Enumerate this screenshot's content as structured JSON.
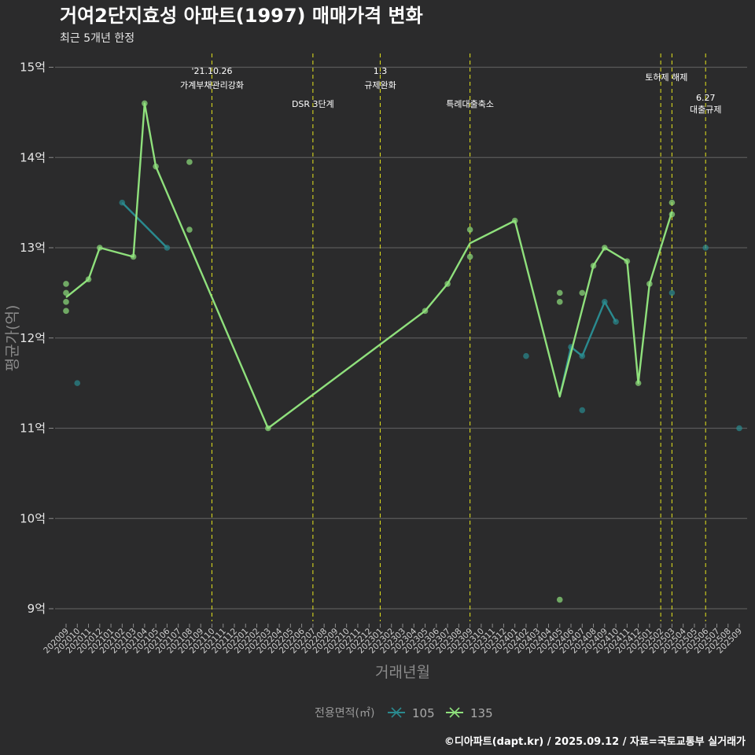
{
  "chart_data": {
    "type": "line",
    "title": "거여2단지효성 아파트(1997) 매매가격 변화",
    "subtitle": "최근 5개년 한정",
    "xlabel": "거래년월",
    "ylabel": "평균가(억)",
    "ylim": [
      8.9,
      15.1
    ],
    "yticks": [
      9,
      10,
      11,
      12,
      13,
      14,
      15
    ],
    "ytick_labels": [
      "9억",
      "10억",
      "11억",
      "12억",
      "13억",
      "14억",
      "15억"
    ],
    "categories": [
      "202009",
      "202010",
      "202011",
      "202012",
      "202101",
      "202102",
      "202103",
      "202104",
      "202105",
      "202106",
      "202107",
      "202108",
      "202109",
      "202110",
      "202111",
      "202112",
      "202201",
      "202202",
      "202203",
      "202204",
      "202205",
      "202206",
      "202207",
      "202208",
      "202209",
      "202210",
      "202211",
      "202212",
      "202301",
      "202302",
      "202303",
      "202304",
      "202305",
      "202306",
      "202307",
      "202308",
      "202309",
      "202310",
      "202311",
      "202312",
      "202401",
      "202402",
      "202403",
      "202404",
      "202405",
      "202406",
      "202407",
      "202408",
      "202409",
      "202410",
      "202411",
      "202412",
      "202501",
      "202502",
      "202503",
      "202504",
      "202505",
      "202506",
      "202507",
      "202508",
      "202509"
    ],
    "series": [
      {
        "name": "105",
        "color": "#2a8a8f",
        "line": [
          [
            "202102",
            13.5
          ],
          [
            "202106",
            13.0
          ]
        ],
        "line2": [
          [
            "202405",
            11.35
          ],
          [
            "202406",
            11.9
          ],
          [
            "202407",
            11.8
          ],
          [
            "202409",
            12.4
          ],
          [
            "202410",
            12.18
          ]
        ],
        "points": [
          [
            "202010",
            11.5
          ],
          [
            "202102",
            13.5
          ],
          [
            "202106",
            13.0
          ],
          [
            "202402",
            11.8
          ],
          [
            "202406",
            11.9
          ],
          [
            "202407",
            11.2
          ],
          [
            "202407",
            11.8
          ],
          [
            "202409",
            12.4
          ],
          [
            "202410",
            12.18
          ],
          [
            "202503",
            12.5
          ],
          [
            "202506",
            13.0
          ],
          [
            "202509",
            11.0
          ]
        ]
      },
      {
        "name": "135",
        "color": "#8fe07c",
        "line": [
          [
            "202009",
            12.45
          ],
          [
            "202011",
            12.65
          ],
          [
            "202012",
            13.0
          ],
          [
            "202103",
            12.9
          ],
          [
            "202104",
            14.6
          ],
          [
            "202105",
            13.9
          ],
          [
            "202203",
            11.0
          ],
          [
            "202305",
            12.3
          ],
          [
            "202307",
            12.6
          ],
          [
            "202309",
            13.05
          ],
          [
            "202401",
            13.3
          ],
          [
            "202405",
            11.35
          ],
          [
            "202408",
            12.8
          ],
          [
            "202409",
            13.0
          ],
          [
            "202411",
            12.85
          ],
          [
            "202412",
            11.5
          ],
          [
            "202501",
            12.6
          ],
          [
            "202503",
            13.4
          ]
        ],
        "points": [
          [
            "202009",
            12.6
          ],
          [
            "202009",
            12.5
          ],
          [
            "202009",
            12.4
          ],
          [
            "202009",
            12.3
          ],
          [
            "202011",
            12.65
          ],
          [
            "202012",
            13.0
          ],
          [
            "202103",
            12.9
          ],
          [
            "202104",
            14.6
          ],
          [
            "202105",
            13.9
          ],
          [
            "202108",
            13.95
          ],
          [
            "202108",
            13.2
          ],
          [
            "202203",
            11.0
          ],
          [
            "202305",
            12.3
          ],
          [
            "202307",
            12.6
          ],
          [
            "202309",
            13.2
          ],
          [
            "202309",
            12.9
          ],
          [
            "202401",
            13.3
          ],
          [
            "202405",
            12.5
          ],
          [
            "202405",
            12.4
          ],
          [
            "202405",
            9.1
          ],
          [
            "202407",
            12.5
          ],
          [
            "202408",
            12.8
          ],
          [
            "202409",
            13.0
          ],
          [
            "202411",
            12.85
          ],
          [
            "202412",
            11.5
          ],
          [
            "202501",
            12.6
          ],
          [
            "202503",
            13.5
          ],
          [
            "202503",
            13.37
          ]
        ]
      }
    ],
    "events": [
      {
        "x": "202110",
        "labels": [
          "'21.10.26",
          "가계부채관리강화"
        ],
        "row": 0
      },
      {
        "x": "202207",
        "labels": [
          "DSR 3단계"
        ],
        "row": 2
      },
      {
        "x": "202301",
        "labels": [
          "1.3",
          "규제완화"
        ],
        "row": 0
      },
      {
        "x": "202309",
        "labels": [
          "특례대출축소"
        ],
        "row": 2
      },
      {
        "x": "202502",
        "labels": [
          "토허제 해제"
        ],
        "row": 1,
        "mid": "202502.5"
      },
      {
        "x": "202503",
        "labels": [],
        "row": 1
      },
      {
        "x": "202506",
        "labels": [
          "6.27",
          "대출규제"
        ],
        "row": 3
      }
    ],
    "event_color": "#d4d41e",
    "legend": {
      "title": "전용면적(㎡)",
      "entries": [
        "105",
        "135"
      ],
      "position": "bottom"
    },
    "caption": "©디아파트(dapt.kr) / 2025.09.12 / 자료=국토교통부 실거래가"
  }
}
